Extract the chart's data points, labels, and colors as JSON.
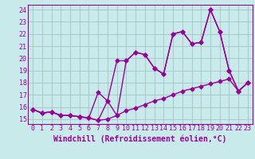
{
  "bg_color": "#c8eaea",
  "line_color": "#990099",
  "grid_color": "#9dbdbd",
  "xlim": [
    -0.5,
    23.5
  ],
  "ylim": [
    14.6,
    24.4
  ],
  "yticks": [
    15,
    16,
    17,
    18,
    19,
    20,
    21,
    22,
    23,
    24
  ],
  "xticks": [
    0,
    1,
    2,
    3,
    4,
    5,
    6,
    7,
    8,
    9,
    10,
    11,
    12,
    13,
    14,
    15,
    16,
    17,
    18,
    19,
    20,
    21,
    22,
    23
  ],
  "line1_x": [
    0,
    1,
    2,
    3,
    4,
    5,
    6,
    7,
    8,
    9,
    10,
    11,
    12,
    13,
    14,
    15,
    16,
    17,
    18,
    19,
    20,
    21,
    22,
    23
  ],
  "line1_y": [
    15.8,
    15.5,
    15.6,
    15.3,
    15.3,
    15.2,
    15.1,
    14.9,
    15.0,
    15.3,
    15.7,
    15.9,
    16.2,
    16.5,
    16.7,
    17.0,
    17.3,
    17.5,
    17.7,
    17.9,
    18.1,
    18.3,
    17.3,
    18.0
  ],
  "line2_x": [
    0,
    1,
    2,
    3,
    4,
    5,
    6,
    7,
    8,
    9,
    10,
    11,
    12,
    13,
    14,
    15,
    16,
    17,
    18,
    19,
    20,
    21,
    22,
    23
  ],
  "line2_y": [
    15.8,
    15.5,
    15.6,
    15.3,
    15.3,
    15.2,
    15.1,
    17.2,
    16.5,
    15.3,
    19.8,
    20.5,
    20.3,
    19.2,
    18.7,
    22.0,
    22.2,
    21.2,
    21.3,
    24.0,
    22.2,
    19.0,
    17.3,
    18.0
  ],
  "line3_x": [
    0,
    1,
    2,
    3,
    4,
    5,
    6,
    7,
    8,
    9,
    10,
    11,
    12,
    13,
    14,
    15,
    16,
    17,
    18,
    19,
    20,
    21,
    22,
    23
  ],
  "line3_y": [
    15.8,
    15.5,
    15.6,
    15.3,
    15.3,
    15.2,
    15.1,
    14.9,
    16.5,
    19.8,
    19.8,
    20.5,
    20.3,
    19.2,
    18.7,
    22.0,
    22.2,
    21.2,
    21.3,
    24.0,
    22.2,
    19.0,
    17.3,
    18.0
  ],
  "xlabel": "Windchill (Refroidissement éolien,°C)",
  "marker": "D",
  "marker_size": 2.5,
  "line_width": 1.0,
  "xlabel_fontsize": 7,
  "tick_fontsize": 6
}
